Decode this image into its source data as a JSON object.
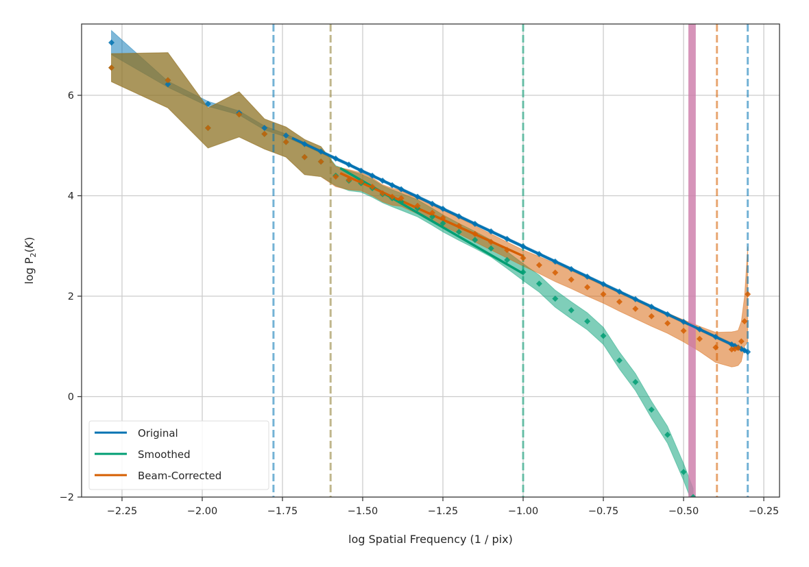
{
  "chart_data": {
    "type": "line",
    "xlabel": "log Spatial Frequency (1 / pix)",
    "ylabel_main": "log P",
    "ylabel_sub": "2",
    "ylabel_open": "(",
    "ylabel_var": "K",
    "ylabel_close": ")",
    "xlim": [
      -2.376,
      -0.201
    ],
    "ylim": [
      -2,
      7.42
    ],
    "grid": true,
    "legend_position": "lower-left",
    "x_ticks": [
      -2.25,
      -2.0,
      -1.75,
      -1.5,
      -1.25,
      -1.0,
      -0.75,
      -0.5,
      -0.25
    ],
    "x_tick_labels": [
      "−2.25",
      "−2.00",
      "−1.75",
      "−1.50",
      "−1.25",
      "−1.00",
      "−0.75",
      "−0.50",
      "−0.25"
    ],
    "y_ticks": [
      -2,
      0,
      2,
      4,
      6
    ],
    "y_tick_labels": [
      "−2",
      "0",
      "2",
      "4",
      "6"
    ],
    "series": [
      {
        "name": "Original",
        "color": "#0072b2",
        "x": [
          -2.283,
          -2.107,
          -1.982,
          -1.885,
          -1.806,
          -1.739,
          -1.681,
          -1.63,
          -1.584,
          -1.543,
          -1.505,
          -1.47,
          -1.438,
          -1.408,
          -1.38,
          -1.329,
          -1.283,
          -1.25,
          -1.2,
          -1.15,
          -1.1,
          -1.05,
          -1.0,
          -0.95,
          -0.9,
          -0.85,
          -0.8,
          -0.75,
          -0.7,
          -0.65,
          -0.6,
          -0.55,
          -0.5,
          -0.45,
          -0.4,
          -0.35,
          -0.34,
          -0.33,
          -0.32,
          -0.31,
          -0.3
        ],
        "y": [
          7.05,
          6.22,
          5.83,
          5.65,
          5.35,
          5.2,
          5.03,
          4.88,
          4.74,
          4.62,
          4.5,
          4.4,
          4.3,
          4.21,
          4.13,
          3.98,
          3.84,
          3.74,
          3.59,
          3.44,
          3.29,
          3.14,
          2.99,
          2.84,
          2.69,
          2.54,
          2.39,
          2.24,
          2.09,
          1.94,
          1.79,
          1.64,
          1.49,
          1.34,
          1.19,
          1.04,
          1.01,
          0.98,
          0.95,
          0.92,
          0.89
        ],
        "err": [
          0.24,
          0.06,
          0.05,
          0.04,
          0.04,
          0.03,
          0.03,
          0.03,
          0.03,
          0.03,
          0.03,
          0.03,
          0.03,
          0.03,
          0.03,
          0.03,
          0.03,
          0.03,
          0.03,
          0.03,
          0.03,
          0.03,
          0.03,
          0.03,
          0.03,
          0.03,
          0.03,
          0.03,
          0.03,
          0.03,
          0.03,
          0.03,
          0.03,
          0.03,
          0.03,
          0.03,
          0.03,
          0.03,
          0.03,
          0.03,
          0.03
        ],
        "fit": {
          "x": [
            -1.72,
            -0.3
          ],
          "y": [
            5.15,
            0.89
          ]
        }
      },
      {
        "name": "Smoothed",
        "color": "#009e73",
        "x": [
          -2.283,
          -2.107,
          -1.982,
          -1.885,
          -1.806,
          -1.739,
          -1.681,
          -1.63,
          -1.584,
          -1.543,
          -1.505,
          -1.47,
          -1.438,
          -1.408,
          -1.38,
          -1.329,
          -1.283,
          -1.25,
          -1.2,
          -1.15,
          -1.1,
          -1.05,
          -1.0,
          -0.95,
          -0.9,
          -0.85,
          -0.8,
          -0.75,
          -0.7,
          -0.65,
          -0.6,
          -0.55,
          -0.5,
          -0.47
        ],
        "y": [
          6.55,
          6.3,
          5.35,
          5.62,
          5.23,
          5.07,
          4.77,
          4.68,
          4.4,
          4.3,
          4.25,
          4.15,
          4.03,
          3.95,
          3.88,
          3.75,
          3.58,
          3.45,
          3.28,
          3.12,
          2.95,
          2.72,
          2.48,
          2.25,
          1.95,
          1.72,
          1.5,
          1.21,
          0.72,
          0.29,
          -0.26,
          -0.76,
          -1.5,
          -2.0
        ],
        "err": [
          0.28,
          0.55,
          0.4,
          0.45,
          0.3,
          0.3,
          0.35,
          0.3,
          0.2,
          0.2,
          0.18,
          0.18,
          0.17,
          0.17,
          0.17,
          0.17,
          0.17,
          0.17,
          0.17,
          0.17,
          0.17,
          0.17,
          0.17,
          0.17,
          0.17,
          0.17,
          0.17,
          0.17,
          0.17,
          0.17,
          0.17,
          0.17,
          0.17,
          0.17
        ],
        "fit": {
          "x": [
            -1.57,
            -1.0
          ],
          "y": [
            4.55,
            2.45
          ]
        }
      },
      {
        "name": "Beam-Corrected",
        "color": "#d55e00",
        "x": [
          -2.283,
          -2.107,
          -1.982,
          -1.885,
          -1.806,
          -1.739,
          -1.681,
          -1.63,
          -1.584,
          -1.543,
          -1.505,
          -1.47,
          -1.438,
          -1.408,
          -1.38,
          -1.329,
          -1.283,
          -1.25,
          -1.2,
          -1.15,
          -1.1,
          -1.05,
          -1.0,
          -0.95,
          -0.9,
          -0.85,
          -0.8,
          -0.75,
          -0.7,
          -0.65,
          -0.6,
          -0.55,
          -0.5,
          -0.45,
          -0.4,
          -0.35,
          -0.34,
          -0.33,
          -0.32,
          -0.31,
          -0.3
        ],
        "y": [
          6.55,
          6.3,
          5.35,
          5.62,
          5.23,
          5.07,
          4.77,
          4.68,
          4.38,
          4.32,
          4.28,
          4.18,
          4.05,
          3.98,
          3.95,
          3.8,
          3.66,
          3.56,
          3.4,
          3.24,
          3.08,
          2.92,
          2.76,
          2.62,
          2.47,
          2.33,
          2.18,
          2.04,
          1.89,
          1.75,
          1.6,
          1.46,
          1.31,
          1.15,
          0.98,
          0.94,
          0.95,
          0.97,
          1.1,
          1.5,
          2.04
        ],
        "err": [
          0.28,
          0.55,
          0.4,
          0.45,
          0.3,
          0.3,
          0.35,
          0.3,
          0.2,
          0.2,
          0.18,
          0.18,
          0.17,
          0.17,
          0.16,
          0.16,
          0.16,
          0.16,
          0.16,
          0.16,
          0.16,
          0.16,
          0.16,
          0.17,
          0.18,
          0.18,
          0.18,
          0.18,
          0.19,
          0.2,
          0.2,
          0.2,
          0.22,
          0.25,
          0.3,
          0.35,
          0.35,
          0.35,
          0.4,
          0.5,
          0.95
        ],
        "fit": {
          "x": [
            -1.57,
            -1.0
          ],
          "y": [
            4.45,
            2.8
          ]
        }
      }
    ],
    "vertical_lines": [
      {
        "x": -1.778,
        "color": "#0072b2",
        "style": "dashed"
      },
      {
        "x": -1.6,
        "color": "#8c7a2e",
        "style": "dashed"
      },
      {
        "x": -1.0,
        "color": "#009e73",
        "style": "dashed"
      },
      {
        "x": -0.396,
        "color": "#d55e00",
        "style": "dashed"
      },
      {
        "x": -0.3,
        "color": "#0072b2",
        "style": "dashed"
      }
    ],
    "shaded_span": {
      "x": [
        -0.485,
        -0.462
      ],
      "color": "#cc79a7"
    }
  }
}
